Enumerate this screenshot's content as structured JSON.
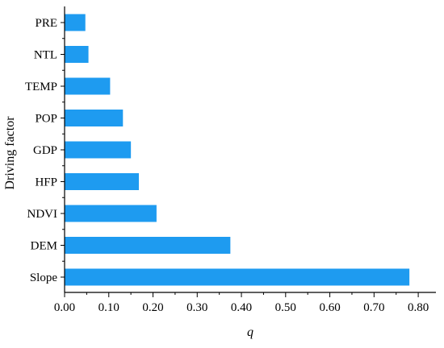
{
  "chart_data": {
    "type": "bar",
    "orientation": "horizontal",
    "categories": [
      "PRE",
      "NTL",
      "TEMP",
      "POP",
      "GDP",
      "HFP",
      "NDVI",
      "DEM",
      "Slope"
    ],
    "values": [
      0.047,
      0.054,
      0.103,
      0.132,
      0.15,
      0.168,
      0.208,
      0.375,
      0.78
    ],
    "xlabel": "q",
    "ylabel": "Driving factor",
    "xlim": [
      0,
      0.84
    ],
    "xticks": [
      "0.00",
      "0.10",
      "0.20",
      "0.30",
      "0.40",
      "0.50",
      "0.60",
      "0.70",
      "0.80"
    ],
    "grid": false,
    "legend": "none",
    "colors": {
      "bar": "#1E9BF0",
      "axis": "#000000"
    }
  }
}
